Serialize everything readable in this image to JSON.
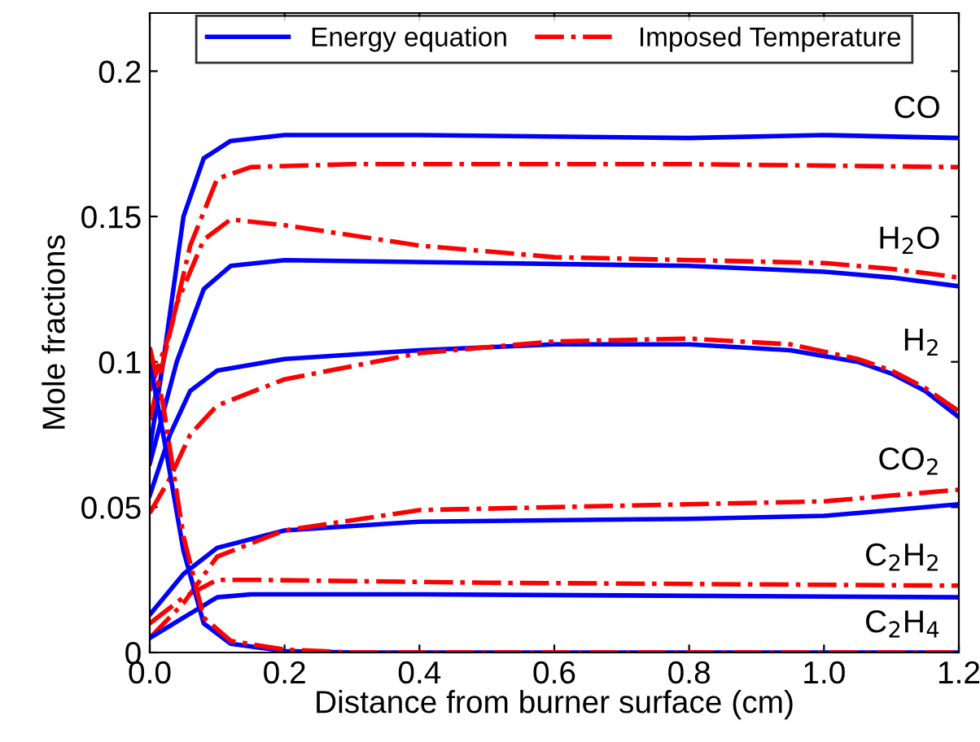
{
  "chart_data": {
    "type": "line",
    "xlabel": "Distance from burner surface (cm)",
    "ylabel": "Mole fractions",
    "xlim": [
      0,
      1.2
    ],
    "ylim": [
      0,
      0.22
    ],
    "xticks": [
      {
        "value": 0,
        "label": "0.0"
      },
      {
        "value": 0.2,
        "label": "0.2"
      },
      {
        "value": 0.4,
        "label": "0.4"
      },
      {
        "value": 0.6,
        "label": "0.6"
      },
      {
        "value": 0.8,
        "label": "0.8"
      },
      {
        "value": 1.0,
        "label": "1.0"
      },
      {
        "value": 1.2,
        "label": "1.2"
      }
    ],
    "yticks": [
      0,
      0.05,
      0.1,
      0.15,
      0.2
    ],
    "grid": false,
    "legend": "top",
    "marker": "none",
    "series": [
      {
        "name": "Energy equation",
        "color": "#0000ff",
        "line_style": "solid",
        "x": [
          0,
          0.02,
          0.05,
          0.08,
          0.12,
          0.2,
          0.4,
          0.8,
          1.0,
          1.2
        ],
        "values": [
          0.07,
          0.1,
          0.15,
          0.17,
          0.176,
          0.178,
          0.178,
          0.177,
          0.178,
          0.177
        ]
      },
      {
        "name": "Imposed Temperature",
        "color": "#ff0000",
        "line_style": "dashdot",
        "x": [
          0,
          0.03,
          0.06,
          0.1,
          0.15,
          0.3,
          0.8,
          1.2
        ],
        "values": [
          0.09,
          0.11,
          0.14,
          0.163,
          0.167,
          0.168,
          0.168,
          0.167
        ]
      },
      {
        "color": "#0000ff",
        "line_style": "solid",
        "x": [
          0,
          0.04,
          0.08,
          0.12,
          0.2,
          0.5,
          0.8,
          1.0,
          1.1,
          1.2
        ],
        "values": [
          0.065,
          0.1,
          0.125,
          0.133,
          0.135,
          0.134,
          0.133,
          0.131,
          0.129,
          0.126
        ]
      },
      {
        "color": "#ff0000",
        "line_style": "dashdot",
        "x": [
          0,
          0.04,
          0.08,
          0.12,
          0.2,
          0.4,
          0.6,
          0.8,
          1.0,
          1.1,
          1.2
        ],
        "values": [
          0.08,
          0.12,
          0.142,
          0.149,
          0.147,
          0.14,
          0.136,
          0.135,
          0.134,
          0.132,
          0.129
        ]
      },
      {
        "color": "#0000ff",
        "line_style": "solid",
        "x": [
          0,
          0.03,
          0.06,
          0.1,
          0.2,
          0.4,
          0.6,
          0.8,
          0.95,
          1.05,
          1.1,
          1.15,
          1.2
        ],
        "values": [
          0.054,
          0.075,
          0.09,
          0.097,
          0.101,
          0.104,
          0.106,
          0.106,
          0.104,
          0.1,
          0.096,
          0.09,
          0.081
        ]
      },
      {
        "color": "#ff0000",
        "line_style": "dashdot",
        "x": [
          0,
          0.03,
          0.06,
          0.1,
          0.2,
          0.4,
          0.6,
          0.8,
          0.95,
          1.05,
          1.1,
          1.15,
          1.2
        ],
        "values": [
          0.048,
          0.06,
          0.075,
          0.085,
          0.094,
          0.103,
          0.107,
          0.108,
          0.106,
          0.101,
          0.097,
          0.091,
          0.083
        ]
      },
      {
        "color": "#0000ff",
        "line_style": "solid",
        "x": [
          0,
          0.05,
          0.1,
          0.2,
          0.4,
          0.8,
          1.0,
          1.1,
          1.2
        ],
        "values": [
          0.013,
          0.027,
          0.036,
          0.042,
          0.045,
          0.046,
          0.047,
          0.049,
          0.051
        ]
      },
      {
        "color": "#ff0000",
        "line_style": "dashdot",
        "x": [
          0,
          0.05,
          0.1,
          0.2,
          0.4,
          0.8,
          1.0,
          1.1,
          1.2
        ],
        "values": [
          0.005,
          0.017,
          0.033,
          0.042,
          0.049,
          0.051,
          0.052,
          0.054,
          0.056
        ]
      },
      {
        "color": "#0000ff",
        "line_style": "solid",
        "x": [
          0,
          0.05,
          0.1,
          0.15,
          0.4,
          1.2
        ],
        "values": [
          0.005,
          0.012,
          0.019,
          0.02,
          0.02,
          0.019
        ]
      },
      {
        "color": "#ff0000",
        "line_style": "dashdot",
        "x": [
          0,
          0.05,
          0.1,
          0.15,
          0.5,
          1.2
        ],
        "values": [
          0.01,
          0.019,
          0.025,
          0.025,
          0.024,
          0.023
        ]
      },
      {
        "color": "#0000ff",
        "line_style": "solid",
        "x": [
          0,
          0.02,
          0.05,
          0.08,
          0.12,
          0.2,
          0.3,
          1.2
        ],
        "values": [
          0.1,
          0.075,
          0.035,
          0.01,
          0.003,
          0.0005,
          0,
          0
        ]
      },
      {
        "color": "#ff0000",
        "line_style": "dashdot",
        "x": [
          0,
          0.02,
          0.05,
          0.08,
          0.12,
          0.2,
          0.3,
          1.2
        ],
        "values": [
          0.105,
          0.085,
          0.04,
          0.012,
          0.004,
          0.001,
          0,
          0
        ]
      }
    ],
    "annotations": [
      "CO",
      "H$_{2}$O",
      "H$_{2}$",
      "CO$_{2}$",
      "C$_{2}$H$_{2}$",
      "C$_{2}$H$_{4}$"
    ]
  }
}
